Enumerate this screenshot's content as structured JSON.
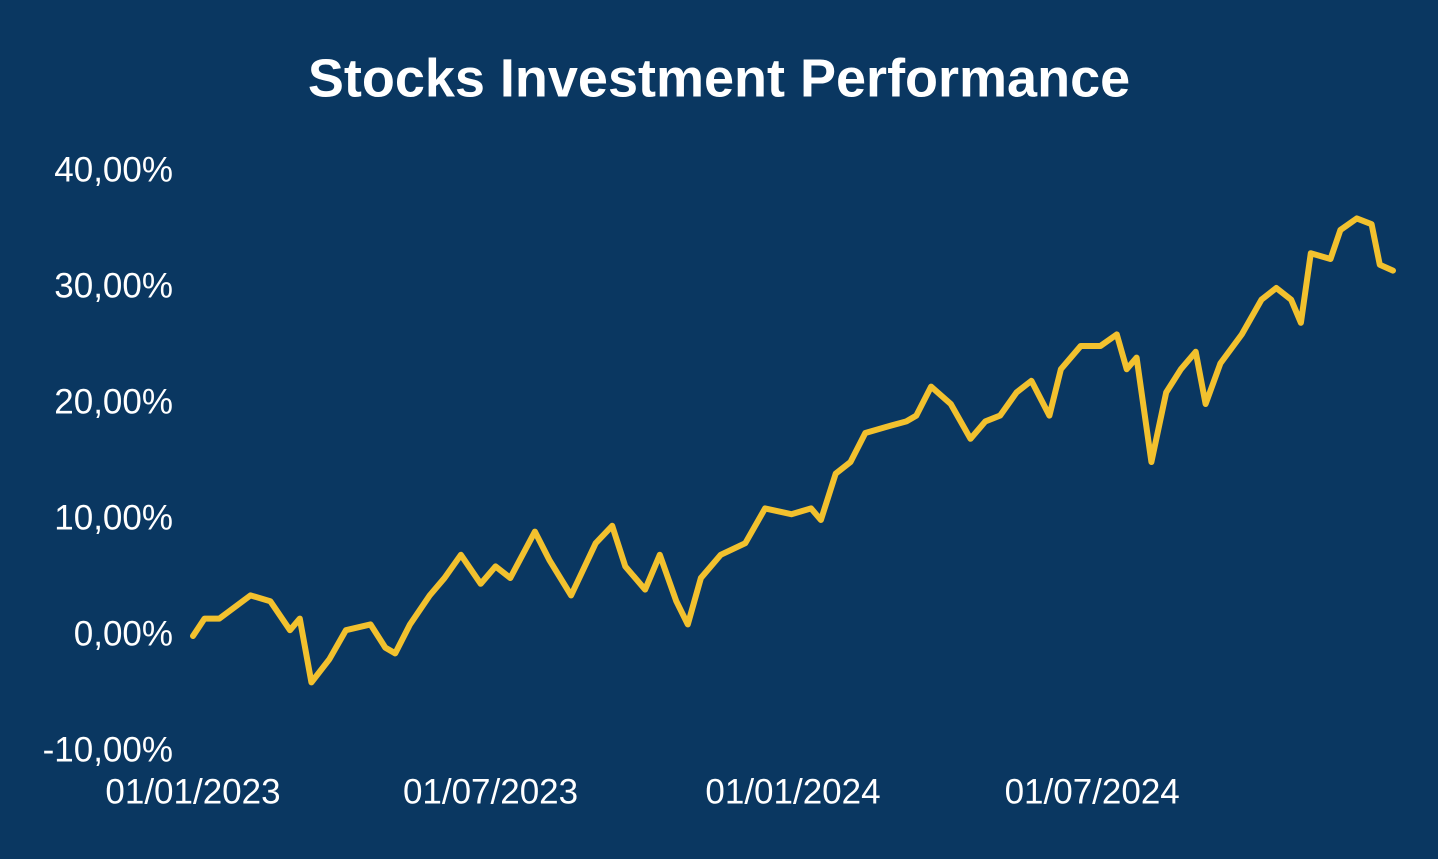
{
  "chart_data": {
    "type": "line",
    "title": "Stocks Investment Performance",
    "x": [
      "2023-01-01",
      "2023-01-08",
      "2023-01-17",
      "2023-02-05",
      "2023-02-17",
      "2023-03-01",
      "2023-03-07",
      "2023-03-14",
      "2023-03-25",
      "2023-04-04",
      "2023-04-19",
      "2023-04-28",
      "2023-05-04",
      "2023-05-13",
      "2023-05-25",
      "2023-06-03",
      "2023-06-13",
      "2023-06-25",
      "2023-07-04",
      "2023-07-13",
      "2023-07-28",
      "2023-08-06",
      "2023-08-19",
      "2023-09-03",
      "2023-09-13",
      "2023-09-21",
      "2023-10-03",
      "2023-10-12",
      "2023-10-22",
      "2023-10-29",
      "2023-11-06",
      "2023-11-18",
      "2023-12-03",
      "2023-12-15",
      "2023-12-31",
      "2024-01-12",
      "2024-01-18",
      "2024-01-27",
      "2024-02-05",
      "2024-02-14",
      "2024-02-26",
      "2024-03-10",
      "2024-03-16",
      "2024-03-25",
      "2024-04-06",
      "2024-04-18",
      "2024-04-27",
      "2024-05-06",
      "2024-05-16",
      "2024-05-25",
      "2024-06-05",
      "2024-06-12",
      "2024-06-24",
      "2024-07-06",
      "2024-07-16",
      "2024-07-22",
      "2024-07-28",
      "2024-08-06",
      "2024-08-15",
      "2024-08-24",
      "2024-09-02",
      "2024-09-08",
      "2024-09-17",
      "2024-09-30",
      "2024-10-12",
      "2024-10-21",
      "2024-10-30",
      "2024-11-05",
      "2024-11-11",
      "2024-11-23",
      "2024-11-29",
      "2024-12-09",
      "2024-12-18",
      "2024-12-23",
      "2024-12-31"
    ],
    "series": [
      {
        "name": "Performance",
        "color": "#f2c12e",
        "values": [
          0,
          1.5,
          1.5,
          3.5,
          3,
          0.5,
          1.5,
          -4,
          -2,
          0.5,
          1,
          -1,
          -1.5,
          1,
          3.5,
          5,
          7,
          4.5,
          6,
          5,
          9,
          6.5,
          3.5,
          8,
          9.5,
          6,
          4,
          7,
          3,
          1,
          5,
          7,
          8,
          11,
          10.5,
          11,
          10,
          14,
          15,
          17.5,
          18,
          18.5,
          19,
          21.5,
          20,
          17,
          18.5,
          19,
          21,
          22,
          19,
          23,
          25,
          25,
          26,
          23,
          24,
          15,
          21,
          23,
          24.5,
          20,
          23.5,
          26,
          29,
          30,
          29,
          27,
          33,
          32.5,
          35,
          36,
          35.5,
          32,
          31.5
        ]
      }
    ],
    "xlim": [
      "2023-01-01",
      "2024-12-31"
    ],
    "xticks": [
      {
        "value": "2023-01-01",
        "label": "01/01/2023"
      },
      {
        "value": "2023-07-01",
        "label": "01/07/2023"
      },
      {
        "value": "2024-01-01",
        "label": "01/01/2024"
      },
      {
        "value": "2024-07-01",
        "label": "01/07/2024"
      }
    ],
    "ylim": [
      -10,
      40
    ],
    "yticks": [
      {
        "value": -10,
        "label": "-10,00%"
      },
      {
        "value": 0,
        "label": "0,00%"
      },
      {
        "value": 10,
        "label": "10,00%"
      },
      {
        "value": 20,
        "label": "20,00%"
      },
      {
        "value": 30,
        "label": "30,00%"
      },
      {
        "value": 40,
        "label": "40,00%"
      }
    ],
    "grid": false
  }
}
